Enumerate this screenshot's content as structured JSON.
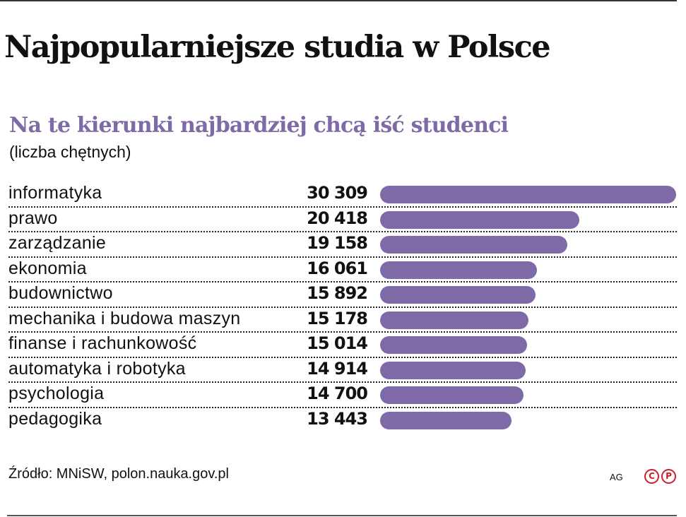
{
  "header": {
    "title": "Najpopularniejsze studia w Polsce",
    "subtitle": "Na te kierunki najbardziej chcą iść studenci",
    "unit": "(liczba chętnych)"
  },
  "colors": {
    "accent": "#7f6aa8",
    "text": "#111111",
    "copyright": "#d11a2a"
  },
  "rows": [
    {
      "label": "informatyka",
      "value": "30 309"
    },
    {
      "label": "prawo",
      "value": "20 418"
    },
    {
      "label": "zarządzanie",
      "value": "19 158"
    },
    {
      "label": "ekonomia",
      "value": "16 061"
    },
    {
      "label": "budownictwo",
      "value": "15 892"
    },
    {
      "label": "mechanika i budowa maszyn",
      "value": "15 178"
    },
    {
      "label": "finanse i rachunkowość",
      "value": "15 014"
    },
    {
      "label": "automatyka i robotyka",
      "value": "14 914"
    },
    {
      "label": "psychologia",
      "value": "14 700"
    },
    {
      "label": "pedagogika",
      "value": "13 443"
    }
  ],
  "footer": {
    "source": "Źródło: MNiSW, polon.nauka.gov.pl",
    "agency": "AG",
    "copyright_c": "C",
    "copyright_p": "P"
  },
  "chart_data": {
    "type": "bar",
    "orientation": "horizontal",
    "title": "Najpopularniejsze studia w Polsce",
    "subtitle": "Na te kierunki najbardziej chcą iść studenci",
    "xlabel": "",
    "ylabel": "liczba chętnych",
    "categories": [
      "informatyka",
      "prawo",
      "zarządzanie",
      "ekonomia",
      "budownictwo",
      "mechanika i budowa maszyn",
      "finanse i rachunkowość",
      "automatyka i robotyka",
      "psychologia",
      "pedagogika"
    ],
    "values": [
      30309,
      20418,
      19158,
      16061,
      15892,
      15178,
      15014,
      14914,
      14700,
      13443
    ],
    "xlim": [
      0,
      30309
    ],
    "grid": false,
    "legend": null,
    "bar_color": "#7f6aa8",
    "source": "Źródło: MNiSW, polon.nauka.gov.pl"
  }
}
